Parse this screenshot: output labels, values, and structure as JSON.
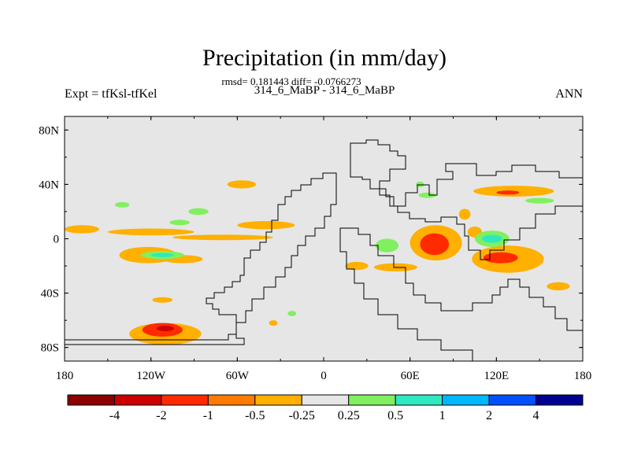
{
  "chart_data": {
    "type": "heatmap",
    "title": "Precipitation (in mm/day)",
    "stats_line": "rmsd= 0.181443 diff= -0.0766273",
    "subtitle": "314_6_MaBP - 314_6_MaBP",
    "left_label": "Expt = tfKsl-tfKel",
    "right_label": "ANN",
    "x_range": [
      -180,
      180
    ],
    "y_range": [
      -90,
      90
    ],
    "x_ticks": [
      {
        "value": -180,
        "label": "180"
      },
      {
        "value": -120,
        "label": "120W"
      },
      {
        "value": -60,
        "label": "60W"
      },
      {
        "value": 0,
        "label": "0"
      },
      {
        "value": 60,
        "label": "60E"
      },
      {
        "value": 120,
        "label": "120E"
      },
      {
        "value": 180,
        "label": "180"
      }
    ],
    "y_ticks": [
      {
        "value": 80,
        "label": "80N"
      },
      {
        "value": 40,
        "label": "40N"
      },
      {
        "value": 0,
        "label": "0"
      },
      {
        "value": -40,
        "label": "40S"
      },
      {
        "value": -80,
        "label": "80S"
      }
    ],
    "colorbar": {
      "colors": [
        "#8b0000",
        "#cc0000",
        "#ff2a00",
        "#ff7b00",
        "#ffb000",
        "#e6e6e6",
        "#80f060",
        "#30e8c0",
        "#00b8ff",
        "#0050ff",
        "#000090"
      ],
      "labels": [
        "-4",
        "-2",
        "-1",
        "-0.5",
        "-0.25",
        "0.25",
        "0.5",
        "1",
        "2",
        "4"
      ]
    },
    "anomaly_regions": [
      {
        "lon": -168,
        "lat": 7,
        "rlon": 12,
        "rlat": 3,
        "level": "-0.25"
      },
      {
        "lon": -120,
        "lat": 5,
        "rlon": 30,
        "rlat": 2.5,
        "level": "-0.25"
      },
      {
        "lon": -70,
        "lat": 1,
        "rlon": 35,
        "rlat": 2,
        "level": "-0.25"
      },
      {
        "lon": -40,
        "lat": 10,
        "rlon": 20,
        "rlat": 3,
        "level": "-0.25"
      },
      {
        "lon": -122,
        "lat": -12,
        "rlon": 20,
        "rlat": 6,
        "level": "-0.25"
      },
      {
        "lon": -98,
        "lat": -15,
        "rlon": 14,
        "rlat": 3,
        "level": "-0.25"
      },
      {
        "lon": -57,
        "lat": 40,
        "rlon": 10,
        "rlat": 3,
        "level": "-0.25"
      },
      {
        "lon": -110,
        "lat": -70,
        "rlon": 25,
        "rlat": 8,
        "level": "-0.25"
      },
      {
        "lon": -112,
        "lat": -67,
        "rlon": 14,
        "rlat": 5,
        "level": "-1"
      },
      {
        "lon": -110,
        "lat": -66,
        "rlon": 6,
        "rlat": 2,
        "level": "-2"
      },
      {
        "lon": -112,
        "lat": -45,
        "rlon": 7,
        "rlat": 2,
        "level": "-0.25"
      },
      {
        "lon": -35,
        "lat": -62,
        "rlon": 3,
        "rlat": 2,
        "level": "-0.25"
      },
      {
        "lon": 78,
        "lat": -3,
        "rlon": 18,
        "rlat": 13,
        "level": "-0.25"
      },
      {
        "lon": 77,
        "lat": -4,
        "rlon": 10,
        "rlat": 8,
        "level": "-1"
      },
      {
        "lon": 128,
        "lat": -15,
        "rlon": 25,
        "rlat": 10,
        "level": "-0.25"
      },
      {
        "lon": 123,
        "lat": -14,
        "rlon": 12,
        "rlat": 4,
        "level": "-1"
      },
      {
        "lon": 132,
        "lat": 35,
        "rlon": 28,
        "rlat": 4,
        "level": "-0.25"
      },
      {
        "lon": 128,
        "lat": 34,
        "rlon": 8,
        "rlat": 1.5,
        "level": "-1"
      },
      {
        "lon": 98,
        "lat": 18,
        "rlon": 4,
        "rlat": 4,
        "level": "-0.25"
      },
      {
        "lon": 50,
        "lat": -21,
        "rlon": 15,
        "rlat": 3,
        "level": "-0.25"
      },
      {
        "lon": 23,
        "lat": -20,
        "rlon": 8,
        "rlat": 3,
        "level": "-0.25"
      },
      {
        "lon": 163,
        "lat": -35,
        "rlon": 8,
        "rlat": 3,
        "level": "-0.25"
      },
      {
        "lon": 105,
        "lat": 5,
        "rlon": 5,
        "rlat": 4,
        "level": "-0.25"
      },
      {
        "lon": -112,
        "lat": -12,
        "rlon": 15,
        "rlat": 3,
        "level": "0.25"
      },
      {
        "lon": -112,
        "lat": -12,
        "rlon": 8,
        "rlat": 1.5,
        "level": "0.5"
      },
      {
        "lon": -100,
        "lat": 12,
        "rlon": 7,
        "rlat": 2,
        "level": "0.25"
      },
      {
        "lon": -87,
        "lat": 20,
        "rlon": 7,
        "rlat": 2.5,
        "level": "0.25"
      },
      {
        "lon": -140,
        "lat": 25,
        "rlon": 5,
        "rlat": 2,
        "level": "0.25"
      },
      {
        "lon": -22,
        "lat": -55,
        "rlon": 3,
        "rlat": 2,
        "level": "0.25"
      },
      {
        "lon": 44,
        "lat": -5,
        "rlon": 8,
        "rlat": 5,
        "level": "0.25"
      },
      {
        "lon": 117,
        "lat": 0,
        "rlon": 12,
        "rlat": 6,
        "level": "0.25"
      },
      {
        "lon": 117,
        "lat": 0,
        "rlon": 7,
        "rlat": 3,
        "level": "0.5"
      },
      {
        "lon": 67,
        "lat": 40,
        "rlon": 3,
        "rlat": 2,
        "level": "0.25"
      },
      {
        "lon": 72,
        "lat": 32,
        "rlon": 6,
        "rlat": 2,
        "level": "0.25"
      },
      {
        "lon": 150,
        "lat": 28,
        "rlon": 10,
        "rlat": 2,
        "level": "0.25"
      }
    ]
  }
}
